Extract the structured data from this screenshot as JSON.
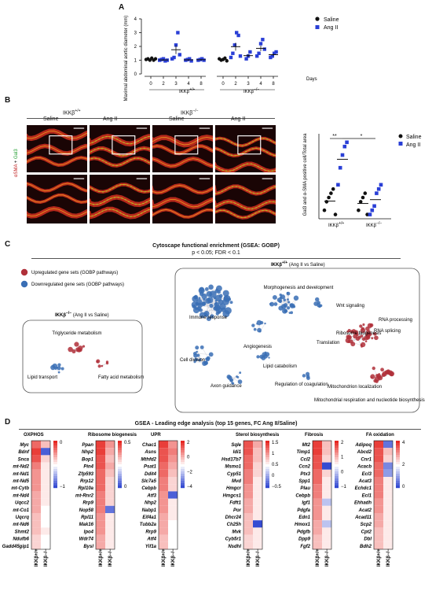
{
  "panels": {
    "A": "A",
    "B": "B",
    "C": "C",
    "D": "D"
  },
  "panelA": {
    "ylabel": "Maximal abdominal aortic diameter (mm)",
    "yticks": [
      "0",
      "1",
      "2",
      "3",
      "4"
    ],
    "days": [
      "0",
      "2",
      "3",
      "4",
      "8",
      "0",
      "2",
      "3",
      "4",
      "8"
    ],
    "days_label": "Days",
    "group_left": "IKKβ",
    "group_left_sup": "+/+",
    "group_right": "IKKβ",
    "group_right_sup": "−/−",
    "legend": [
      "Saline",
      "Ang II"
    ],
    "colors": {
      "saline": "#111111",
      "ang": "#2a3fd6"
    }
  },
  "chart_data": {
    "type": "scatter",
    "title": "",
    "ylabel": "Maximal abdominal aortic diameter (mm)",
    "xlabel": "Days",
    "ylim": [
      0,
      4
    ],
    "series": [
      {
        "name": "Saline",
        "group": "IKKβ+/+",
        "day": "0",
        "values": [
          1.05,
          1.1,
          1.0,
          1.15,
          1.0,
          1.1
        ]
      },
      {
        "name": "Ang II",
        "group": "IKKβ+/+",
        "day": "2",
        "values": [
          1.0,
          1.05,
          1.1,
          0.95,
          1.0
        ]
      },
      {
        "name": "Ang II",
        "group": "IKKβ+/+",
        "day": "3",
        "values": [
          1.1,
          1.2,
          2.1,
          3.0,
          1.4
        ]
      },
      {
        "name": "Ang II",
        "group": "IKKβ+/+",
        "day": "4",
        "values": [
          1.0,
          1.05,
          1.1,
          0.95
        ]
      },
      {
        "name": "Ang II",
        "group": "IKKβ+/+",
        "day": "8",
        "values": [
          1.0,
          1.05,
          1.1,
          1.0
        ]
      },
      {
        "name": "Saline",
        "group": "IKKβ−/−",
        "day": "0",
        "values": [
          1.1,
          1.0,
          1.05,
          1.15,
          0.95
        ]
      },
      {
        "name": "Ang II",
        "group": "IKKβ−/−",
        "day": "2",
        "values": [
          1.2,
          1.5,
          2.1,
          3.0,
          2.8,
          1.3
        ]
      },
      {
        "name": "Ang II",
        "group": "IKKβ−/−",
        "day": "3",
        "values": [
          1.1,
          1.3,
          1.6
        ]
      },
      {
        "name": "Ang II",
        "group": "IKKβ−/−",
        "day": "4",
        "values": [
          1.3,
          1.5,
          2.2,
          2.5,
          1.8
        ]
      },
      {
        "name": "Ang II",
        "group": "IKKβ−/−",
        "day": "8",
        "values": [
          1.2,
          1.3,
          1.5,
          1.6
        ]
      }
    ],
    "panelB_quant": {
      "ylabel": "Gal3 and α-SMA positive cell/Total area",
      "groups": [
        "IKKβ+/+",
        "IKKβ−/−"
      ],
      "saline": [
        [
          0.01,
          0.02,
          0.025,
          0.03,
          0.035,
          0.005
        ],
        [
          0.01,
          0.02,
          0.025,
          0.03,
          0.005
        ]
      ],
      "ang": [
        [
          0.04,
          0.06,
          0.075,
          0.085,
          0.09
        ],
        [
          0.005,
          0.01,
          0.015,
          0.03,
          0.035,
          0.04
        ]
      ],
      "sig": [
        "**",
        "*"
      ]
    }
  },
  "panelB": {
    "col_group_left": "IKKβ",
    "col_group_left_sup": "+/+",
    "col_group_right": "IKKβ",
    "col_group_right_sup": "−/−",
    "cols": [
      "Saline",
      "Ang II",
      "Saline",
      "Ang II"
    ],
    "side_label_a": "αSMA",
    "side_label_b": "Gal3",
    "quant_ylabel": "Gal3 and α-SMA positive cell/Total area",
    "quant_legend": [
      "Saline",
      "Ang II"
    ],
    "quant_x": [
      "IKKβ",
      "IKKβ"
    ],
    "quant_x_sup": [
      "+/+",
      "−/−"
    ]
  },
  "panelC": {
    "title": "Cytoscape functional enrichment (GSEA: GOBP)",
    "subtitle": "p < 0.05; FDR < 0.1",
    "legend_up": "Upregulated gene sets (GOBP pathways)",
    "legend_down": "Downregulated gene sets (GOBP pathways)",
    "left_box_title": "IKKβ",
    "left_box_sup": "−/−",
    "left_box_suffix": " (Ang II vs Saline)",
    "right_box_title": "IKKβ",
    "right_box_sup": "+/+",
    "right_box_suffix": " (Ang II vs Saline)",
    "left_labels": [
      "Triglyceride metabolism",
      "Lipid transport",
      "Fatty acid metabolism"
    ],
    "right_labels": [
      "Morphogenesis and development",
      "Wnt signaling",
      "Immune response",
      "RNA processing",
      "Ribosome biogenesis",
      "RNA splicing",
      "Angiogenesis",
      "Translation",
      "Cell division",
      "Lipid catabolism",
      "Regulation of coagulation",
      "Axon guidance",
      "Mitochondrion localization",
      "Mitochondrial respiration and nucleotide biosynthesis"
    ],
    "up_color": "#b0303a",
    "down_color": "#3a6fb5"
  },
  "panelD": {
    "title": "GSEA - Leading edge analysis (top 15 genes, FC Ang II/Saline)",
    "xcols": [
      "IKKβ+/+",
      "IKKβ−/−"
    ],
    "groups": [
      {
        "title": "OXPHOS",
        "genes": [
          "Myc",
          "Bdnf",
          "Snca",
          "mt-Nd2",
          "mt-Nd1",
          "mt-Nd5",
          "mt-Cytb",
          "mt-Nd4",
          "Uqcc2",
          "mt-Co1",
          "Uqcrq",
          "mt-Nd6",
          "Shmt2",
          "Ndufb6",
          "Gadd45gip1"
        ],
        "scale": [
          "0",
          "−1"
        ]
      },
      {
        "title": "Ribosome biogenesis",
        "genes": [
          "Ppan",
          "Nhp2",
          "Bop1",
          "Pin4",
          "Zfp593",
          "Rrp12",
          "Rpl10a",
          "mt-Rnr2",
          "Rrp9",
          "Nop58",
          "Rpl11",
          "Mak16",
          "Ipo4",
          "Wdr74",
          "Bysl"
        ],
        "scale": [
          "0.5",
          "0"
        ]
      },
      {
        "title": "UPR",
        "genes": [
          "Chac1",
          "Asns",
          "Mthfd2",
          "Psat1",
          "Ddit4",
          "Slc7a5",
          "Cebpb",
          "Atf3",
          "Nhp2",
          "Nabp1",
          "Eif4a1",
          "Tubb2a",
          "Rrp9",
          "Atf4",
          "Yif1a"
        ],
        "scale": [
          "2",
          "0",
          "−2",
          "−4"
        ]
      },
      {
        "title": "Sterol biosynthesis",
        "genes": [
          "Sqle",
          "Idi1",
          "Hsd17b7",
          "Msmo1",
          "Cyp51",
          "Mvd",
          "Hmgcr",
          "Hmgcs1",
          "Fdft1",
          "Por",
          "Dhcr24",
          "Ch25h",
          "Mvk",
          "Cyb5r1",
          "Nsdhl"
        ],
        "scale": [
          "1.5",
          "1",
          "0.5",
          "0",
          "−0.5"
        ]
      },
      {
        "title": "Fibrosis",
        "genes": [
          "Mt2",
          "Timp1",
          "Ccl2",
          "Ccn2",
          "Ptx3",
          "Spp1",
          "Plau",
          "Cebpb",
          "Igf1",
          "Pdgfa",
          "Edn1",
          "Hmox1",
          "Pdgfb",
          "Dpp9",
          "Fgf2"
        ],
        "scale": [
          "2",
          "1",
          "0",
          "−1"
        ]
      },
      {
        "title": "FA oxidation",
        "genes": [
          "Adipoq",
          "Abcd2",
          "Cnr1",
          "Acacb",
          "Ecl3",
          "Acat3",
          "Echdc1",
          "Ecl1",
          "Ehhadh",
          "Acat2",
          "Acad11",
          "Scp2",
          "Cpt2",
          "Dbl",
          "Bdh2"
        ],
        "scale": [
          "4",
          "2",
          "0"
        ]
      }
    ],
    "heat": [
      {
        "a": [
          0.7,
          0.9,
          0.8,
          0.6,
          0.5,
          0.5,
          0.5,
          0.4,
          0.4,
          0.4,
          0.3,
          0.3,
          0.3,
          0.2,
          0.2
        ],
        "b": [
          0.3,
          -0.8,
          0.2,
          0.1,
          0.1,
          0.1,
          0.1,
          0.1,
          0.1,
          0.0,
          0.0,
          0.0,
          0.1,
          0.0,
          0.0
        ]
      },
      {
        "a": [
          0.9,
          0.9,
          0.8,
          0.8,
          0.7,
          0.7,
          0.7,
          0.6,
          0.6,
          0.6,
          0.5,
          0.5,
          0.5,
          0.4,
          0.4
        ],
        "b": [
          0.5,
          0.4,
          0.3,
          0.4,
          0.3,
          0.2,
          0.2,
          0.2,
          0.2,
          -0.7,
          0.1,
          0.1,
          0.1,
          0.1,
          0.1
        ]
      },
      {
        "a": [
          0.9,
          0.8,
          0.8,
          0.7,
          0.7,
          0.6,
          0.6,
          0.5,
          0.5,
          0.5,
          0.4,
          0.4,
          0.4,
          0.3,
          0.3
        ],
        "b": [
          0.5,
          0.6,
          0.5,
          0.4,
          0.3,
          0.2,
          0.2,
          -0.8,
          0.1,
          0.1,
          0.1,
          0.0,
          0.0,
          0.0,
          0.0
        ]
      },
      {
        "a": [
          0.8,
          0.8,
          0.7,
          0.7,
          0.6,
          0.6,
          0.5,
          0.5,
          0.4,
          0.4,
          0.3,
          0.3,
          0.3,
          0.2,
          0.2
        ],
        "b": [
          0.4,
          0.3,
          0.3,
          0.2,
          0.2,
          0.1,
          0.1,
          0.1,
          0.1,
          0.1,
          0.1,
          -0.9,
          0.1,
          0.1,
          0.1
        ]
      },
      {
        "a": [
          0.9,
          0.9,
          0.8,
          0.8,
          0.7,
          0.7,
          0.6,
          0.6,
          0.5,
          0.5,
          0.5,
          0.4,
          0.4,
          0.3,
          0.3
        ],
        "b": [
          0.3,
          0.3,
          0.2,
          -0.9,
          0.2,
          0.1,
          0.1,
          0.1,
          -0.3,
          0.1,
          0.1,
          -0.3,
          0.1,
          0.1,
          0.1
        ]
      },
      {
        "a": [
          0.9,
          0.8,
          0.8,
          0.7,
          0.7,
          0.6,
          0.6,
          0.6,
          0.5,
          0.5,
          0.4,
          0.4,
          0.3,
          0.3,
          0.3
        ],
        "b": [
          -0.7,
          0.3,
          0.2,
          -0.6,
          -0.5,
          0.1,
          0.1,
          0.1,
          0.1,
          0.1,
          0.1,
          0.1,
          0.1,
          0.1,
          0.1
        ]
      }
    ]
  }
}
